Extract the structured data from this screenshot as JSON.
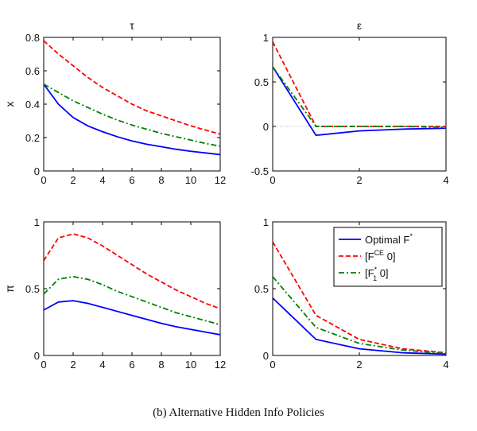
{
  "caption": "(b) Alternative Hidden Info Policies",
  "legend": {
    "placement": "top-right of bottom-right panel",
    "entries": [
      {
        "label": "Optimal F",
        "sup": "*",
        "sub": "",
        "tail": "",
        "color": "#0000ff",
        "dash": "solid"
      },
      {
        "label": "[F",
        "sup": "CE",
        "sub": "",
        "tail": " 0]",
        "color": "#ff0000",
        "dash": "dashed"
      },
      {
        "label": "[F",
        "sup": "*",
        "sub": "1",
        "tail": " 0]",
        "color": "#007f00",
        "dash": "dashdot"
      }
    ]
  },
  "chart_data": [
    {
      "type": "line",
      "title": "τ",
      "xlabel": "",
      "ylabel": "x",
      "xlim": [
        0,
        12
      ],
      "ylim": [
        0,
        0.8
      ],
      "xticks": [
        0,
        2,
        4,
        6,
        8,
        10,
        12
      ],
      "yticks": [
        0,
        0.2,
        0.4,
        0.6,
        0.8
      ],
      "zero_line": false,
      "x": [
        0,
        1,
        2,
        3,
        4,
        5,
        6,
        7,
        8,
        9,
        10,
        11,
        12
      ],
      "series": [
        {
          "name": "Optimal F*",
          "color": "#0000ff",
          "dash": "solid",
          "values": [
            0.52,
            0.4,
            0.32,
            0.27,
            0.235,
            0.205,
            0.18,
            0.16,
            0.145,
            0.13,
            0.118,
            0.108,
            0.098
          ]
        },
        {
          "name": "[F^CE 0]",
          "color": "#ff0000",
          "dash": "dashed",
          "values": [
            0.78,
            0.7,
            0.63,
            0.56,
            0.5,
            0.45,
            0.4,
            0.36,
            0.33,
            0.3,
            0.27,
            0.245,
            0.22
          ]
        },
        {
          "name": "[F1* 0]",
          "color": "#007f00",
          "dash": "dashdot",
          "values": [
            0.52,
            0.47,
            0.42,
            0.38,
            0.34,
            0.305,
            0.275,
            0.25,
            0.225,
            0.205,
            0.185,
            0.165,
            0.148
          ]
        }
      ]
    },
    {
      "type": "line",
      "title": "ε",
      "xlabel": "",
      "ylabel": "",
      "xlim": [
        0,
        4
      ],
      "ylim": [
        -0.5,
        1
      ],
      "xticks": [
        0,
        2,
        4
      ],
      "yticks": [
        -0.5,
        0,
        0.5,
        1
      ],
      "zero_line": true,
      "x": [
        0,
        1,
        2,
        3,
        4
      ],
      "series": [
        {
          "name": "Optimal F*",
          "color": "#0000ff",
          "dash": "solid",
          "values": [
            0.67,
            -0.1,
            -0.05,
            -0.03,
            -0.02
          ]
        },
        {
          "name": "[F^CE 0]",
          "color": "#ff0000",
          "dash": "dashed",
          "values": [
            0.95,
            0.0,
            0.0,
            0.0,
            0.0
          ]
        },
        {
          "name": "[F1* 0]",
          "color": "#007f00",
          "dash": "dashdot",
          "values": [
            0.67,
            0.0,
            0.0,
            0.0,
            -0.01
          ]
        }
      ]
    },
    {
      "type": "line",
      "title": "",
      "xlabel": "",
      "ylabel": "π",
      "xlim": [
        0,
        12
      ],
      "ylim": [
        0,
        1
      ],
      "xticks": [
        0,
        2,
        4,
        6,
        8,
        10,
        12
      ],
      "yticks": [
        0,
        0.5,
        1
      ],
      "zero_line": false,
      "x": [
        0,
        1,
        2,
        3,
        4,
        5,
        6,
        7,
        8,
        9,
        10,
        11,
        12
      ],
      "series": [
        {
          "name": "Optimal F*",
          "color": "#0000ff",
          "dash": "solid",
          "values": [
            0.34,
            0.4,
            0.41,
            0.39,
            0.36,
            0.33,
            0.3,
            0.27,
            0.24,
            0.215,
            0.195,
            0.175,
            0.155
          ]
        },
        {
          "name": "[F^CE 0]",
          "color": "#ff0000",
          "dash": "dashed",
          "values": [
            0.71,
            0.88,
            0.91,
            0.88,
            0.82,
            0.75,
            0.68,
            0.61,
            0.55,
            0.49,
            0.44,
            0.39,
            0.35
          ]
        },
        {
          "name": "[F1* 0]",
          "color": "#007f00",
          "dash": "dashdot",
          "values": [
            0.46,
            0.57,
            0.59,
            0.57,
            0.53,
            0.48,
            0.44,
            0.4,
            0.36,
            0.32,
            0.29,
            0.26,
            0.23
          ]
        }
      ]
    },
    {
      "type": "line",
      "title": "",
      "xlabel": "",
      "ylabel": "",
      "xlim": [
        0,
        4
      ],
      "ylim": [
        0,
        1
      ],
      "xticks": [
        0,
        2,
        4
      ],
      "yticks": [
        0,
        0.5,
        1
      ],
      "zero_line": false,
      "x": [
        0,
        1,
        2,
        3,
        4
      ],
      "series": [
        {
          "name": "Optimal F*",
          "color": "#0000ff",
          "dash": "solid",
          "values": [
            0.43,
            0.12,
            0.05,
            0.02,
            0.01
          ]
        },
        {
          "name": "[F^CE 0]",
          "color": "#ff0000",
          "dash": "dashed",
          "values": [
            0.85,
            0.3,
            0.12,
            0.05,
            0.02
          ]
        },
        {
          "name": "[F1* 0]",
          "color": "#007f00",
          "dash": "dashdot",
          "values": [
            0.59,
            0.21,
            0.09,
            0.04,
            0.015
          ]
        }
      ]
    }
  ]
}
